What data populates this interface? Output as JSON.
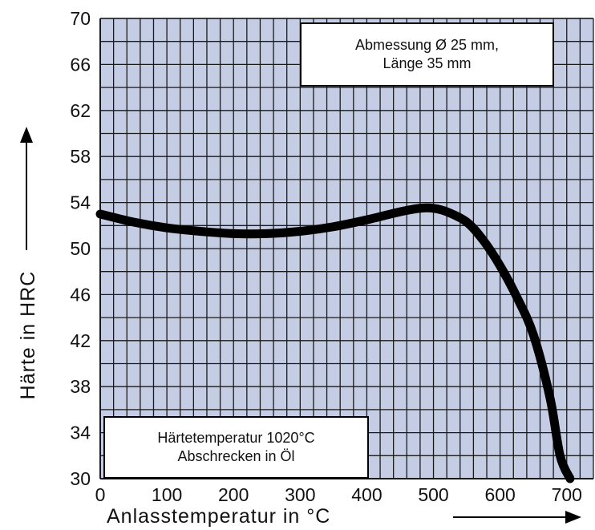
{
  "chart_data": {
    "type": "line",
    "title": "",
    "xlabel": "Anlasstemperatur in °C",
    "ylabel": "Härte in HRC",
    "xlim": [
      0,
      740
    ],
    "ylim": [
      30,
      70
    ],
    "x_ticks": [
      0,
      100,
      200,
      300,
      400,
      500,
      600,
      700
    ],
    "y_ticks": [
      30,
      34,
      38,
      42,
      46,
      50,
      54,
      58,
      62,
      66,
      70
    ],
    "grid": true,
    "series": [
      {
        "x": [
          0,
          50,
          100,
          150,
          200,
          250,
          300,
          350,
          400,
          450,
          480,
          500,
          520,
          550,
          575,
          600,
          625,
          650,
          675,
          690,
          705
        ],
        "y": [
          53.0,
          52.3,
          51.8,
          51.5,
          51.3,
          51.3,
          51.5,
          51.9,
          52.5,
          53.2,
          53.5,
          53.5,
          53.2,
          52.3,
          50.7,
          48.5,
          45.8,
          42.5,
          37.0,
          32.0,
          30.0
        ]
      }
    ],
    "annotations": [
      {
        "lines": [
          "Abmessung Ø 25 mm,",
          "Länge 35 mm"
        ]
      },
      {
        "lines": [
          "Härtetemperatur 1020°C",
          "Abschrecken in Öl"
        ]
      }
    ]
  },
  "colors": {
    "plot_background": "#c5cde4",
    "grid": "#1a1a1a",
    "curve": "#000000"
  }
}
